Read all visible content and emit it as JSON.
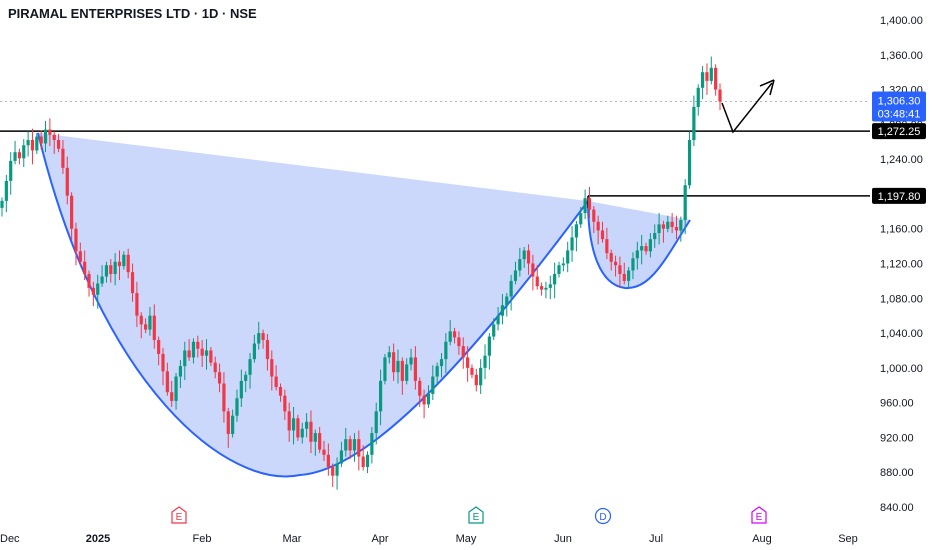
{
  "header": {
    "title": "PIRAMAL ENTERPRISES LTD · 1D · NSE"
  },
  "colors": {
    "up": "#089981",
    "down": "#f23645",
    "pattern_fill": "#c9d6fb",
    "pattern_line": "#2962ff",
    "price_tag": "#2962ff",
    "level_line": "#000000"
  },
  "chart_data": {
    "type": "candlestick",
    "y_range": [
      830,
      1420
    ],
    "y_ticks": [
      840,
      880,
      920,
      960,
      1000,
      1040,
      1080,
      1120,
      1160,
      1200,
      1240,
      1280,
      1320,
      1360,
      1400
    ],
    "y_tick_labels": [
      "840.00",
      "880.00",
      "920.00",
      "960.00",
      "1,000.00",
      "1,040.00",
      "1,080.00",
      "1,120.00",
      "1,160.00",
      "1,200.00",
      "1,240.00",
      "1,280.00",
      "1,320.00",
      "1,360.00",
      "1,400.00"
    ],
    "x_ticks": [
      {
        "label": "Dec",
        "bold": false
      },
      {
        "label": "2025",
        "bold": true
      },
      {
        "label": "Feb",
        "bold": false
      },
      {
        "label": "Mar",
        "bold": false
      },
      {
        "label": "Apr",
        "bold": false
      },
      {
        "label": "May",
        "bold": false
      },
      {
        "label": "Jun",
        "bold": false
      },
      {
        "label": "Jul",
        "bold": false
      },
      {
        "label": "Aug",
        "bold": false
      },
      {
        "label": "Sep",
        "bold": false
      }
    ],
    "candles_close": [
      1192,
      1215,
      1238,
      1248,
      1241,
      1256,
      1262,
      1250,
      1266,
      1258,
      1274,
      1268,
      1262,
      1252,
      1230,
      1198,
      1160,
      1134,
      1122,
      1108,
      1092,
      1084,
      1097,
      1105,
      1118,
      1108,
      1122,
      1117,
      1130,
      1110,
      1086,
      1060,
      1050,
      1044,
      1060,
      1032,
      1016,
      996,
      972,
      962,
      990,
      1002,
      1020,
      1012,
      1030,
      1022,
      1014,
      1020,
      1006,
      995,
      982,
      950,
      924,
      945,
      965,
      985,
      992,
      1010,
      1028,
      1040,
      1032,
      1010,
      990,
      978,
      968,
      950,
      928,
      942,
      920,
      930,
      938,
      915,
      925,
      906,
      900,
      886,
      876,
      890,
      905,
      918,
      905,
      918,
      898,
      886,
      900,
      925,
      950,
      985,
      1012,
      1018,
      995,
      1008,
      985,
      1004,
      1012,
      985,
      968,
      958,
      970,
      990,
      1002,
      1010,
      1030,
      1042,
      1035,
      1025,
      1012,
      1000,
      992,
      980,
      1000,
      1014,
      1036,
      1050,
      1060,
      1072,
      1082,
      1100,
      1112,
      1125,
      1135,
      1120,
      1105,
      1094,
      1090,
      1092,
      1096,
      1108,
      1118,
      1120,
      1135,
      1150,
      1165,
      1178,
      1195,
      1182,
      1168,
      1158,
      1148,
      1132,
      1122,
      1118,
      1108,
      1100,
      1112,
      1126,
      1135,
      1140,
      1134,
      1148,
      1155,
      1165,
      1160,
      1168,
      1162,
      1158,
      1170,
      1210,
      1262,
      1300,
      1322,
      1340,
      1330,
      1345,
      1320,
      1306.3
    ],
    "events": [
      {
        "letter": "E",
        "color": "#f23645"
      },
      {
        "letter": "E",
        "color": "#089981"
      },
      {
        "letter": "D",
        "color": "#2962ff"
      },
      {
        "letter": "E",
        "color": "#d500f9"
      }
    ],
    "price_tags": [
      {
        "label": "1,306.30",
        "sublabel": "03:48:41",
        "value": 1306.3,
        "style": "current"
      },
      {
        "label": "1,272.25",
        "value": 1272.25,
        "style": "level"
      },
      {
        "label": "1,197.80",
        "value": 1197.8,
        "style": "level"
      }
    ],
    "levels": [
      {
        "value": 1272.25
      },
      {
        "value": 1197.8
      }
    ],
    "pattern": "cup-and-handle"
  }
}
